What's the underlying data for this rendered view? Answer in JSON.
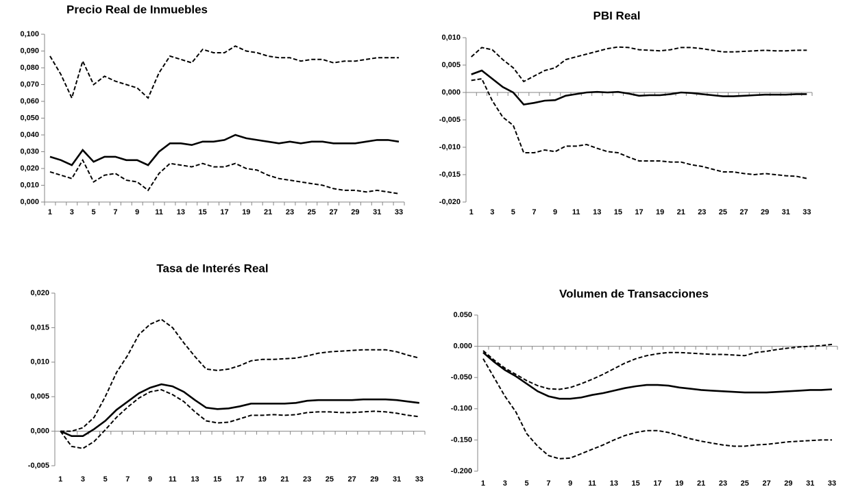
{
  "chart_data": [
    {
      "type": "line",
      "title": "Precio Real de Inmuebles",
      "categories": [
        "1",
        null,
        "3",
        null,
        "5",
        null,
        "7",
        null,
        "9",
        null,
        "11",
        null,
        "13",
        null,
        "15",
        null,
        "17",
        null,
        "19",
        null,
        "21",
        null,
        "23",
        null,
        "25",
        null,
        "27",
        null,
        "29",
        null,
        "31",
        null,
        "33"
      ],
      "ylim": [
        0,
        0.1
      ],
      "yticks": [
        {
          "value": 0,
          "label": "0,000"
        },
        {
          "value": 0.01,
          "label": "0,010"
        },
        {
          "value": 0.02,
          "label": "0,020"
        },
        {
          "value": 0.03,
          "label": "0,030"
        },
        {
          "value": 0.04,
          "label": "0,040"
        },
        {
          "value": 0.05,
          "label": "0,050"
        },
        {
          "value": 0.06,
          "label": "0,060"
        },
        {
          "value": 0.07,
          "label": "0,070"
        },
        {
          "value": 0.08,
          "label": "0,080"
        },
        {
          "value": 0.09,
          "label": "0,090"
        },
        {
          "value": 0.1,
          "label": "0,100"
        }
      ],
      "series": [
        {
          "color": "#000000",
          "style": "dashed",
          "values": [
            0.087,
            0.076,
            0.062,
            0.084,
            0.07,
            0.075,
            0.072,
            0.07,
            0.068,
            0.062,
            0.077,
            0.087,
            0.085,
            0.083,
            0.091,
            0.089,
            0.089,
            0.093,
            0.09,
            0.089,
            0.087,
            0.086,
            0.086,
            0.084,
            0.085,
            0.085,
            0.083,
            0.084,
            0.084,
            0.085,
            0.086,
            0.086,
            0.086
          ]
        },
        {
          "color": "#000000",
          "style": "solid",
          "values": [
            0.027,
            0.025,
            0.022,
            0.031,
            0.024,
            0.027,
            0.027,
            0.025,
            0.025,
            0.022,
            0.03,
            0.035,
            0.035,
            0.034,
            0.036,
            0.036,
            0.037,
            0.04,
            0.038,
            0.037,
            0.036,
            0.035,
            0.036,
            0.035,
            0.036,
            0.036,
            0.035,
            0.035,
            0.035,
            0.036,
            0.037,
            0.037,
            0.036
          ]
        },
        {
          "color": "#000000",
          "style": "dashed",
          "values": [
            0.018,
            0.016,
            0.014,
            0.025,
            0.012,
            0.016,
            0.017,
            0.013,
            0.012,
            0.007,
            0.017,
            0.023,
            0.022,
            0.021,
            0.023,
            0.021,
            0.021,
            0.023,
            0.02,
            0.019,
            0.016,
            0.014,
            0.013,
            0.012,
            0.011,
            0.01,
            0.008,
            0.007,
            0.007,
            0.006,
            0.007,
            0.006,
            0.005
          ]
        }
      ]
    },
    {
      "type": "line",
      "title": "PBI Real",
      "categories": [
        "1",
        null,
        "3",
        null,
        "5",
        null,
        "7",
        null,
        "9",
        null,
        "11",
        null,
        "13",
        null,
        "15",
        null,
        "17",
        null,
        "19",
        null,
        "21",
        null,
        "23",
        null,
        "25",
        null,
        "27",
        null,
        "29",
        null,
        "31",
        null,
        "33"
      ],
      "ylim": [
        -0.02,
        0.01
      ],
      "yticks": [
        {
          "value": -0.02,
          "label": "-0,020"
        },
        {
          "value": -0.015,
          "label": "-0,015"
        },
        {
          "value": -0.01,
          "label": "-0,010"
        },
        {
          "value": -0.005,
          "label": "-0,005"
        },
        {
          "value": 0,
          "label": "0,000"
        },
        {
          "value": 0.005,
          "label": "0,005"
        },
        {
          "value": 0.01,
          "label": "0,010"
        }
      ],
      "series": [
        {
          "color": "#000000",
          "style": "dashed",
          "values": [
            0.0065,
            0.0082,
            0.0078,
            0.006,
            0.0045,
            0.002,
            0.003,
            0.004,
            0.0045,
            0.006,
            0.0065,
            0.007,
            0.0075,
            0.008,
            0.0083,
            0.0082,
            0.0078,
            0.0077,
            0.0076,
            0.0078,
            0.0082,
            0.0082,
            0.008,
            0.0077,
            0.0074,
            0.0074,
            0.0075,
            0.0076,
            0.0077,
            0.0076,
            0.0076,
            0.0077,
            0.0077
          ]
        },
        {
          "color": "#000000",
          "style": "solid",
          "values": [
            0.0033,
            0.004,
            0.0025,
            0.001,
            0,
            -0.0022,
            -0.0019,
            -0.0015,
            -0.0014,
            -0.0006,
            -0.0003,
            0,
            0.0001,
            0,
            0.0001,
            -0.0002,
            -0.0006,
            -0.0005,
            -0.0005,
            -0.0003,
            0,
            -0.0001,
            -0.0003,
            -0.0005,
            -0.0007,
            -0.0007,
            -0.0006,
            -0.0005,
            -0.0004,
            -0.0004,
            -0.0004,
            -0.0003,
            -0.0003
          ]
        },
        {
          "color": "#000000",
          "style": "dashed",
          "values": [
            0.0022,
            0.0025,
            -0.0015,
            -0.0045,
            -0.006,
            -0.011,
            -0.011,
            -0.0105,
            -0.0108,
            -0.0098,
            -0.0098,
            -0.0095,
            -0.0102,
            -0.0108,
            -0.011,
            -0.0118,
            -0.0125,
            -0.0125,
            -0.0125,
            -0.0127,
            -0.0127,
            -0.0132,
            -0.0135,
            -0.014,
            -0.0145,
            -0.0145,
            -0.0148,
            -0.015,
            -0.0148,
            -0.015,
            -0.0152,
            -0.0153,
            -0.0157
          ]
        }
      ]
    },
    {
      "type": "line",
      "title": "Tasa de Interés Real",
      "categories": [
        "1",
        null,
        "3",
        null,
        "5",
        null,
        "7",
        null,
        "9",
        null,
        "11",
        null,
        "13",
        null,
        "15",
        null,
        "17",
        null,
        "19",
        null,
        "21",
        null,
        "23",
        null,
        "25",
        null,
        "27",
        null,
        "29",
        null,
        "31",
        null,
        "33"
      ],
      "ylim": [
        -0.005,
        0.02
      ],
      "yticks": [
        {
          "value": -0.005,
          "label": "-0,005"
        },
        {
          "value": 0,
          "label": "0,000"
        },
        {
          "value": 0.005,
          "label": "0,005"
        },
        {
          "value": 0.01,
          "label": "0,010"
        },
        {
          "value": 0.015,
          "label": "0,015"
        },
        {
          "value": 0.02,
          "label": "0,020"
        }
      ],
      "series": [
        {
          "color": "#000000",
          "style": "dashed",
          "values": [
            0,
            0,
            0.0005,
            0.002,
            0.005,
            0.0085,
            0.011,
            0.014,
            0.0155,
            0.0162,
            0.015,
            0.0128,
            0.0108,
            0.009,
            0.0088,
            0.009,
            0.0095,
            0.0102,
            0.0104,
            0.0104,
            0.0105,
            0.0106,
            0.0109,
            0.0113,
            0.0115,
            0.0116,
            0.0117,
            0.0118,
            0.0118,
            0.0118,
            0.0115,
            0.011,
            0.0106
          ]
        },
        {
          "color": "#000000",
          "style": "solid",
          "values": [
            0,
            -0.0007,
            -0.0007,
            0.0003,
            0.0015,
            0.0031,
            0.0043,
            0.0055,
            0.0063,
            0.0068,
            0.0065,
            0.0057,
            0.0045,
            0.0034,
            0.0032,
            0.0033,
            0.0036,
            0.004,
            0.004,
            0.004,
            0.004,
            0.0041,
            0.0044,
            0.0045,
            0.0045,
            0.0045,
            0.0045,
            0.0046,
            0.0046,
            0.0046,
            0.0045,
            0.0043,
            0.0041
          ]
        },
        {
          "color": "#000000",
          "style": "dashed",
          "values": [
            0,
            -0.0022,
            -0.0025,
            -0.0015,
            0.0002,
            0.002,
            0.0035,
            0.0048,
            0.0057,
            0.006,
            0.0053,
            0.0043,
            0.0028,
            0.0015,
            0.0012,
            0.0013,
            0.0018,
            0.0023,
            0.0023,
            0.0024,
            0.0023,
            0.0024,
            0.0027,
            0.0028,
            0.0028,
            0.0027,
            0.0027,
            0.0028,
            0.0029,
            0.0028,
            0.0026,
            0.0023,
            0.0021
          ]
        }
      ]
    },
    {
      "type": "line",
      "title": "Volumen de Transacciones",
      "categories": [
        "1",
        null,
        "3",
        null,
        "5",
        null,
        "7",
        null,
        "9",
        null,
        "11",
        null,
        "13",
        null,
        "15",
        null,
        "17",
        null,
        "19",
        null,
        "21",
        null,
        "23",
        null,
        "25",
        null,
        "27",
        null,
        "29",
        null,
        "31",
        null,
        "33"
      ],
      "ylim": [
        -0.2,
        0.05
      ],
      "yticks": [
        {
          "value": -0.2,
          "label": "-0.200"
        },
        {
          "value": -0.15,
          "label": "-0.150"
        },
        {
          "value": -0.1,
          "label": "-0.100"
        },
        {
          "value": -0.05,
          "label": "-0.050"
        },
        {
          "value": 0,
          "label": "0.000"
        },
        {
          "value": 0.05,
          "label": "0.050"
        }
      ],
      "series": [
        {
          "color": "#000000",
          "style": "dashed",
          "values": [
            -0.007,
            -0.022,
            -0.035,
            -0.045,
            -0.055,
            -0.063,
            -0.068,
            -0.069,
            -0.066,
            -0.06,
            -0.053,
            -0.045,
            -0.036,
            -0.027,
            -0.02,
            -0.015,
            -0.012,
            -0.01,
            -0.01,
            -0.011,
            -0.012,
            -0.013,
            -0.013,
            -0.014,
            -0.015,
            -0.01,
            -0.008,
            -0.005,
            -0.003,
            -0.001,
            0,
            0.001,
            0.003
          ]
        },
        {
          "color": "#000000",
          "style": "solid",
          "values": [
            -0.01,
            -0.025,
            -0.038,
            -0.048,
            -0.06,
            -0.072,
            -0.08,
            -0.084,
            -0.084,
            -0.082,
            -0.078,
            -0.075,
            -0.071,
            -0.067,
            -0.064,
            -0.062,
            -0.062,
            -0.063,
            -0.066,
            -0.068,
            -0.07,
            -0.071,
            -0.072,
            -0.073,
            -0.074,
            -0.074,
            -0.074,
            -0.073,
            -0.072,
            -0.071,
            -0.07,
            -0.07,
            -0.069
          ]
        },
        {
          "color": "#000000",
          "style": "dashed",
          "values": [
            -0.02,
            -0.05,
            -0.08,
            -0.105,
            -0.14,
            -0.16,
            -0.175,
            -0.18,
            -0.179,
            -0.172,
            -0.165,
            -0.158,
            -0.15,
            -0.143,
            -0.138,
            -0.135,
            -0.135,
            -0.138,
            -0.143,
            -0.148,
            -0.152,
            -0.155,
            -0.158,
            -0.16,
            -0.16,
            -0.158,
            -0.157,
            -0.155,
            -0.153,
            -0.152,
            -0.151,
            -0.15,
            -0.15
          ]
        }
      ]
    }
  ]
}
